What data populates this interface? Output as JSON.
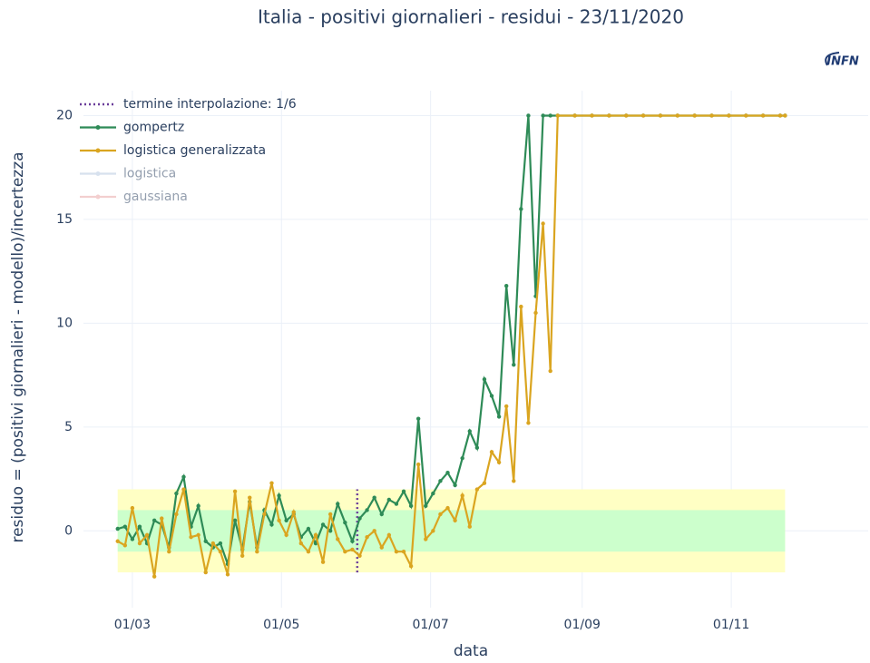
{
  "chart_data": {
    "type": "line",
    "title": "Italia - positivi giornalieri - residui - 23/11/2020",
    "logo": "INFN",
    "x_label": "data",
    "y_label": "residuo = (positivi giornalieri -  modello)/incertezza",
    "xlim": [
      "10/02",
      "27/12"
    ],
    "xticks": [
      "01/03",
      "01/05",
      "01/07",
      "01/09",
      "01/11"
    ],
    "ylim": [
      -3.7,
      21.2
    ],
    "yticks": [
      0,
      5,
      10,
      15,
      20
    ],
    "grid": true,
    "legend": "top-left",
    "bands": [
      {
        "x": [
          "24/02",
          "23/11"
        ],
        "from": -2,
        "to": 2,
        "color": "#ffffc4"
      },
      {
        "x": [
          "24/02",
          "23/11"
        ],
        "from": -1,
        "to": 1,
        "color": "#ccffcc"
      }
    ],
    "vline": {
      "name": "termine interpolazione: 1/6",
      "x": "01/06",
      "from": -2,
      "to": 2,
      "color": "#6a3d9a"
    },
    "x": [
      "24/02",
      "27/02",
      "01/03",
      "04/03",
      "07/03",
      "10/03",
      "13/03",
      "16/03",
      "19/03",
      "22/03",
      "25/03",
      "28/03",
      "31/03",
      "03/04",
      "06/04",
      "09/04",
      "12/04",
      "15/04",
      "18/04",
      "21/04",
      "24/04",
      "27/04",
      "30/04",
      "03/05",
      "06/05",
      "09/05",
      "12/05",
      "15/05",
      "18/05",
      "21/05",
      "24/05",
      "27/05",
      "30/05",
      "02/06",
      "05/06",
      "08/06",
      "11/06",
      "14/06",
      "17/06",
      "20/06",
      "23/06",
      "26/06",
      "29/06",
      "02/07",
      "05/07",
      "08/07",
      "11/07",
      "14/07",
      "17/07",
      "20/07",
      "23/07",
      "26/07",
      "29/07",
      "01/08",
      "04/08",
      "07/08",
      "10/08",
      "13/08",
      "16/08",
      "19/08",
      "22/08",
      "29/08",
      "05/09",
      "12/09",
      "19/09",
      "26/09",
      "03/10",
      "10/10",
      "17/10",
      "24/10",
      "31/10",
      "07/11",
      "14/11",
      "21/11",
      "23/11"
    ],
    "series": [
      {
        "name": "gompertz",
        "color": "#2e8b57",
        "values": [
          0.1,
          0.2,
          -0.4,
          0.2,
          -0.6,
          0.5,
          0.3,
          -0.8,
          1.8,
          2.6,
          0.2,
          1.2,
          -0.5,
          -0.8,
          -0.6,
          -1.6,
          0.5,
          -0.9,
          1.4,
          -0.8,
          1.0,
          0.3,
          1.7,
          0.5,
          0.8,
          -0.3,
          0.1,
          -0.6,
          0.3,
          0.0,
          1.3,
          0.4,
          -0.5,
          0.6,
          1.0,
          1.6,
          0.8,
          1.5,
          1.3,
          1.9,
          1.2,
          5.4,
          1.2,
          1.8,
          2.4,
          2.8,
          2.2,
          3.5,
          4.8,
          4.0,
          7.3,
          6.5,
          5.5,
          11.8,
          8.0,
          15.5,
          20,
          11.3,
          20,
          20,
          20,
          20,
          20,
          20,
          20,
          20,
          20,
          20,
          20,
          20,
          20,
          20,
          20,
          20,
          20
        ]
      },
      {
        "name": "logistica generalizzata",
        "color": "#daa520",
        "values": [
          -0.5,
          -0.7,
          1.1,
          -0.6,
          -0.2,
          -2.2,
          0.6,
          -1.0,
          0.8,
          2.0,
          -0.3,
          -0.2,
          -2.0,
          -0.6,
          -1.0,
          -2.1,
          1.9,
          -1.2,
          1.6,
          -1.0,
          0.8,
          2.3,
          0.5,
          -0.2,
          0.9,
          -0.6,
          -1.0,
          -0.2,
          -1.5,
          0.8,
          -0.4,
          -1.0,
          -0.9,
          -1.2,
          -0.3,
          0.0,
          -0.8,
          -0.2,
          -1.0,
          -1.0,
          -1.7,
          3.2,
          -0.4,
          0.0,
          0.8,
          1.1,
          0.5,
          1.7,
          0.2,
          2.0,
          2.3,
          3.8,
          3.3,
          6.0,
          2.4,
          10.8,
          5.2,
          10.5,
          14.8,
          7.7,
          20,
          20,
          20,
          20,
          20,
          20,
          20,
          20,
          20,
          20,
          20,
          20,
          20,
          20,
          20
        ]
      },
      {
        "name": "logistica",
        "color": "#b0c4de",
        "visible": "legendonly"
      },
      {
        "name": "gaussiana",
        "color": "#e8a0a0",
        "visible": "legendonly"
      }
    ]
  }
}
